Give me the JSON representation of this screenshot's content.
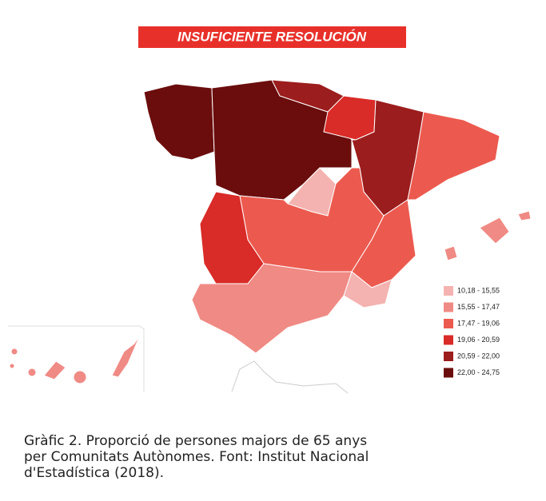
{
  "banner": "INSUFICIENTE RESOLUCIÓN",
  "legend": {
    "items": [
      {
        "label": "10,18 - 15,55",
        "color": "#f4b3b0"
      },
      {
        "label": "15,55 - 17,47",
        "color": "#f08a84"
      },
      {
        "label": "17,47 - 19,06",
        "color": "#ec5a4f"
      },
      {
        "label": "19,06 - 20,59",
        "color": "#d92b27"
      },
      {
        "label": "20,59 - 22,00",
        "color": "#9c1d1d"
      },
      {
        "label": "22,00 - 24,75",
        "color": "#6b0d0d"
      }
    ]
  },
  "caption": {
    "lines": [
      "Gràfic 2. Proporció de persones majors de 65 anys",
      "per Comunitats Autònomes. Font: Institut Nacional",
      "d'Estadística (2018)."
    ]
  }
}
